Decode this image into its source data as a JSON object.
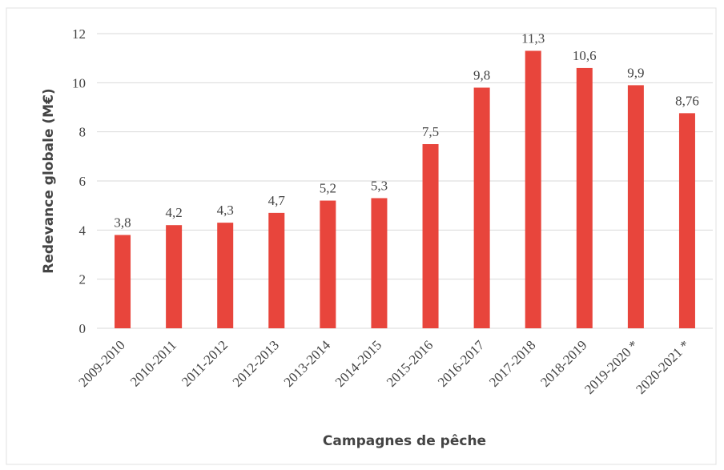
{
  "chart_data": {
    "type": "bar",
    "x_label": "Campagnes de pêche",
    "y_label": "Redevance globale (M€)",
    "categories": [
      "2009-2010",
      "2010-2011",
      "2011-2012",
      "2012-2013",
      "2013-2014",
      "2014-2015",
      "2015-2016",
      "2016-2017",
      "2017-2018",
      "2018-2019",
      "2019-2020 *",
      "2020-2021 *"
    ],
    "values": [
      3.8,
      4.2,
      4.3,
      4.7,
      5.2,
      5.3,
      7.5,
      9.8,
      11.3,
      10.6,
      9.9,
      8.76
    ],
    "value_labels": [
      "3,8",
      "4,2",
      "4,3",
      "4,7",
      "5,2",
      "5,3",
      "7,5",
      "9,8",
      "11,3",
      "10,6",
      "9,9",
      "8,76"
    ],
    "color": "#e8453c",
    "ylim": [
      0,
      12
    ],
    "yticks": [
      0,
      2,
      4,
      6,
      8,
      10,
      12
    ],
    "grid": true
  }
}
